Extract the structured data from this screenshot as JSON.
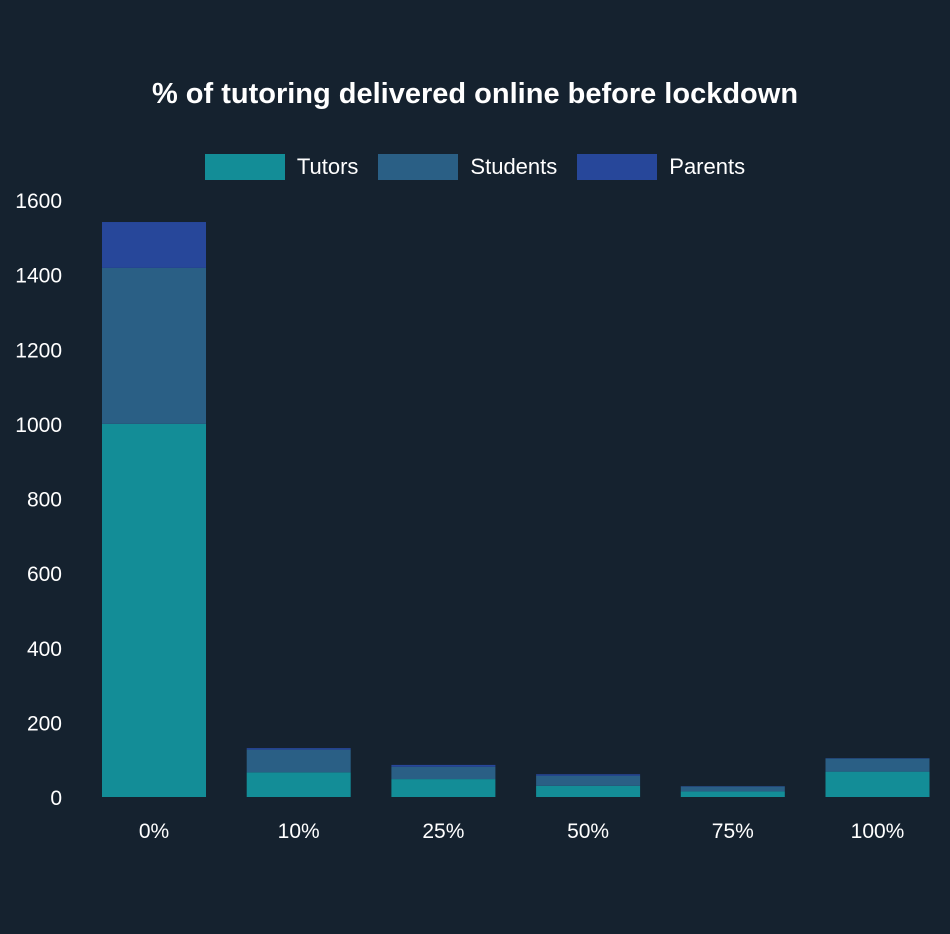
{
  "chart_data": {
    "type": "bar",
    "stacked": true,
    "title": "% of tutoring delivered online before lockdown",
    "xlabel": "",
    "ylabel": "",
    "categories": [
      "0%",
      "10%",
      "25%",
      "50%",
      "75%",
      "100%"
    ],
    "series": [
      {
        "name": "Tutors",
        "color": "#138d97",
        "values": [
          1000,
          66,
          48,
          30,
          15,
          68
        ]
      },
      {
        "name": "Students",
        "color": "#2a5f85",
        "values": [
          418,
          61,
          33,
          27,
          13,
          35
        ]
      },
      {
        "name": "Parents",
        "color": "#27479a",
        "values": [
          123,
          4,
          5,
          4,
          1,
          1
        ]
      }
    ],
    "ylim": [
      0,
      1600
    ],
    "yticks": [
      0,
      200,
      400,
      600,
      800,
      1000,
      1200,
      1400,
      1600
    ],
    "grid": false,
    "legend_position": "top-center",
    "background": "#15222f"
  }
}
